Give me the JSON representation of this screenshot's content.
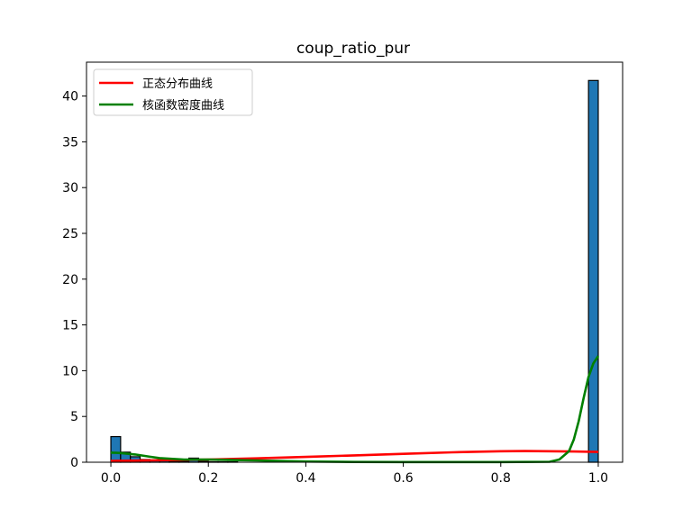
{
  "chart_data": {
    "type": "bar",
    "title": "coup_ratio_pur",
    "xlabel": "",
    "ylabel": "",
    "xlim": [
      -0.05,
      1.05
    ],
    "ylim": [
      0,
      43.7
    ],
    "xticks": [
      "0.0",
      "0.2",
      "0.4",
      "0.6",
      "0.8",
      "1.0"
    ],
    "xtick_values": [
      0,
      0.2,
      0.4,
      0.6,
      0.8,
      1.0
    ],
    "yticks": [
      "0",
      "5",
      "10",
      "15",
      "20",
      "25",
      "30",
      "35",
      "40"
    ],
    "ytick_values": [
      0,
      5,
      10,
      15,
      20,
      25,
      30,
      35,
      40
    ],
    "grid": false,
    "legend_position": "top-left",
    "histogram": {
      "bin_width": 0.02,
      "bins": [
        {
          "x0": 0.0,
          "value": 2.8
        },
        {
          "x0": 0.02,
          "value": 1.1
        },
        {
          "x0": 0.04,
          "value": 0.6
        },
        {
          "x0": 0.06,
          "value": 0.3
        },
        {
          "x0": 0.08,
          "value": 0.2
        },
        {
          "x0": 0.1,
          "value": 0.15
        },
        {
          "x0": 0.12,
          "value": 0.1
        },
        {
          "x0": 0.14,
          "value": 0.1
        },
        {
          "x0": 0.16,
          "value": 0.45
        },
        {
          "x0": 0.18,
          "value": 0.1
        },
        {
          "x0": 0.2,
          "value": 0.05
        },
        {
          "x0": 0.22,
          "value": 0.05
        },
        {
          "x0": 0.24,
          "value": 0.05
        },
        {
          "x0": 0.98,
          "value": 41.7
        }
      ],
      "color": "#1f77b4",
      "edge_color": "#000000"
    },
    "series": [
      {
        "name": "正态分布曲线",
        "color": "#ff0000",
        "x": [
          0,
          0.1,
          0.2,
          0.3,
          0.4,
          0.5,
          0.6,
          0.7,
          0.8,
          0.85,
          0.9,
          0.95,
          1.0
        ],
        "y": [
          0.15,
          0.22,
          0.3,
          0.42,
          0.58,
          0.75,
          0.92,
          1.08,
          1.2,
          1.22,
          1.2,
          1.17,
          1.12
        ]
      },
      {
        "name": "核函数密度曲线",
        "color": "#008000",
        "x": [
          0,
          0.02,
          0.05,
          0.08,
          0.1,
          0.15,
          0.2,
          0.3,
          0.4,
          0.5,
          0.6,
          0.7,
          0.8,
          0.9,
          0.92,
          0.94,
          0.95,
          0.96,
          0.97,
          0.98,
          0.99,
          1.0
        ],
        "y": [
          1.05,
          1.0,
          0.85,
          0.6,
          0.45,
          0.3,
          0.3,
          0.2,
          0.08,
          0.03,
          0.02,
          0.02,
          0.02,
          0.05,
          0.3,
          1.2,
          2.5,
          4.5,
          7.0,
          9.3,
          10.8,
          11.6
        ]
      }
    ]
  }
}
